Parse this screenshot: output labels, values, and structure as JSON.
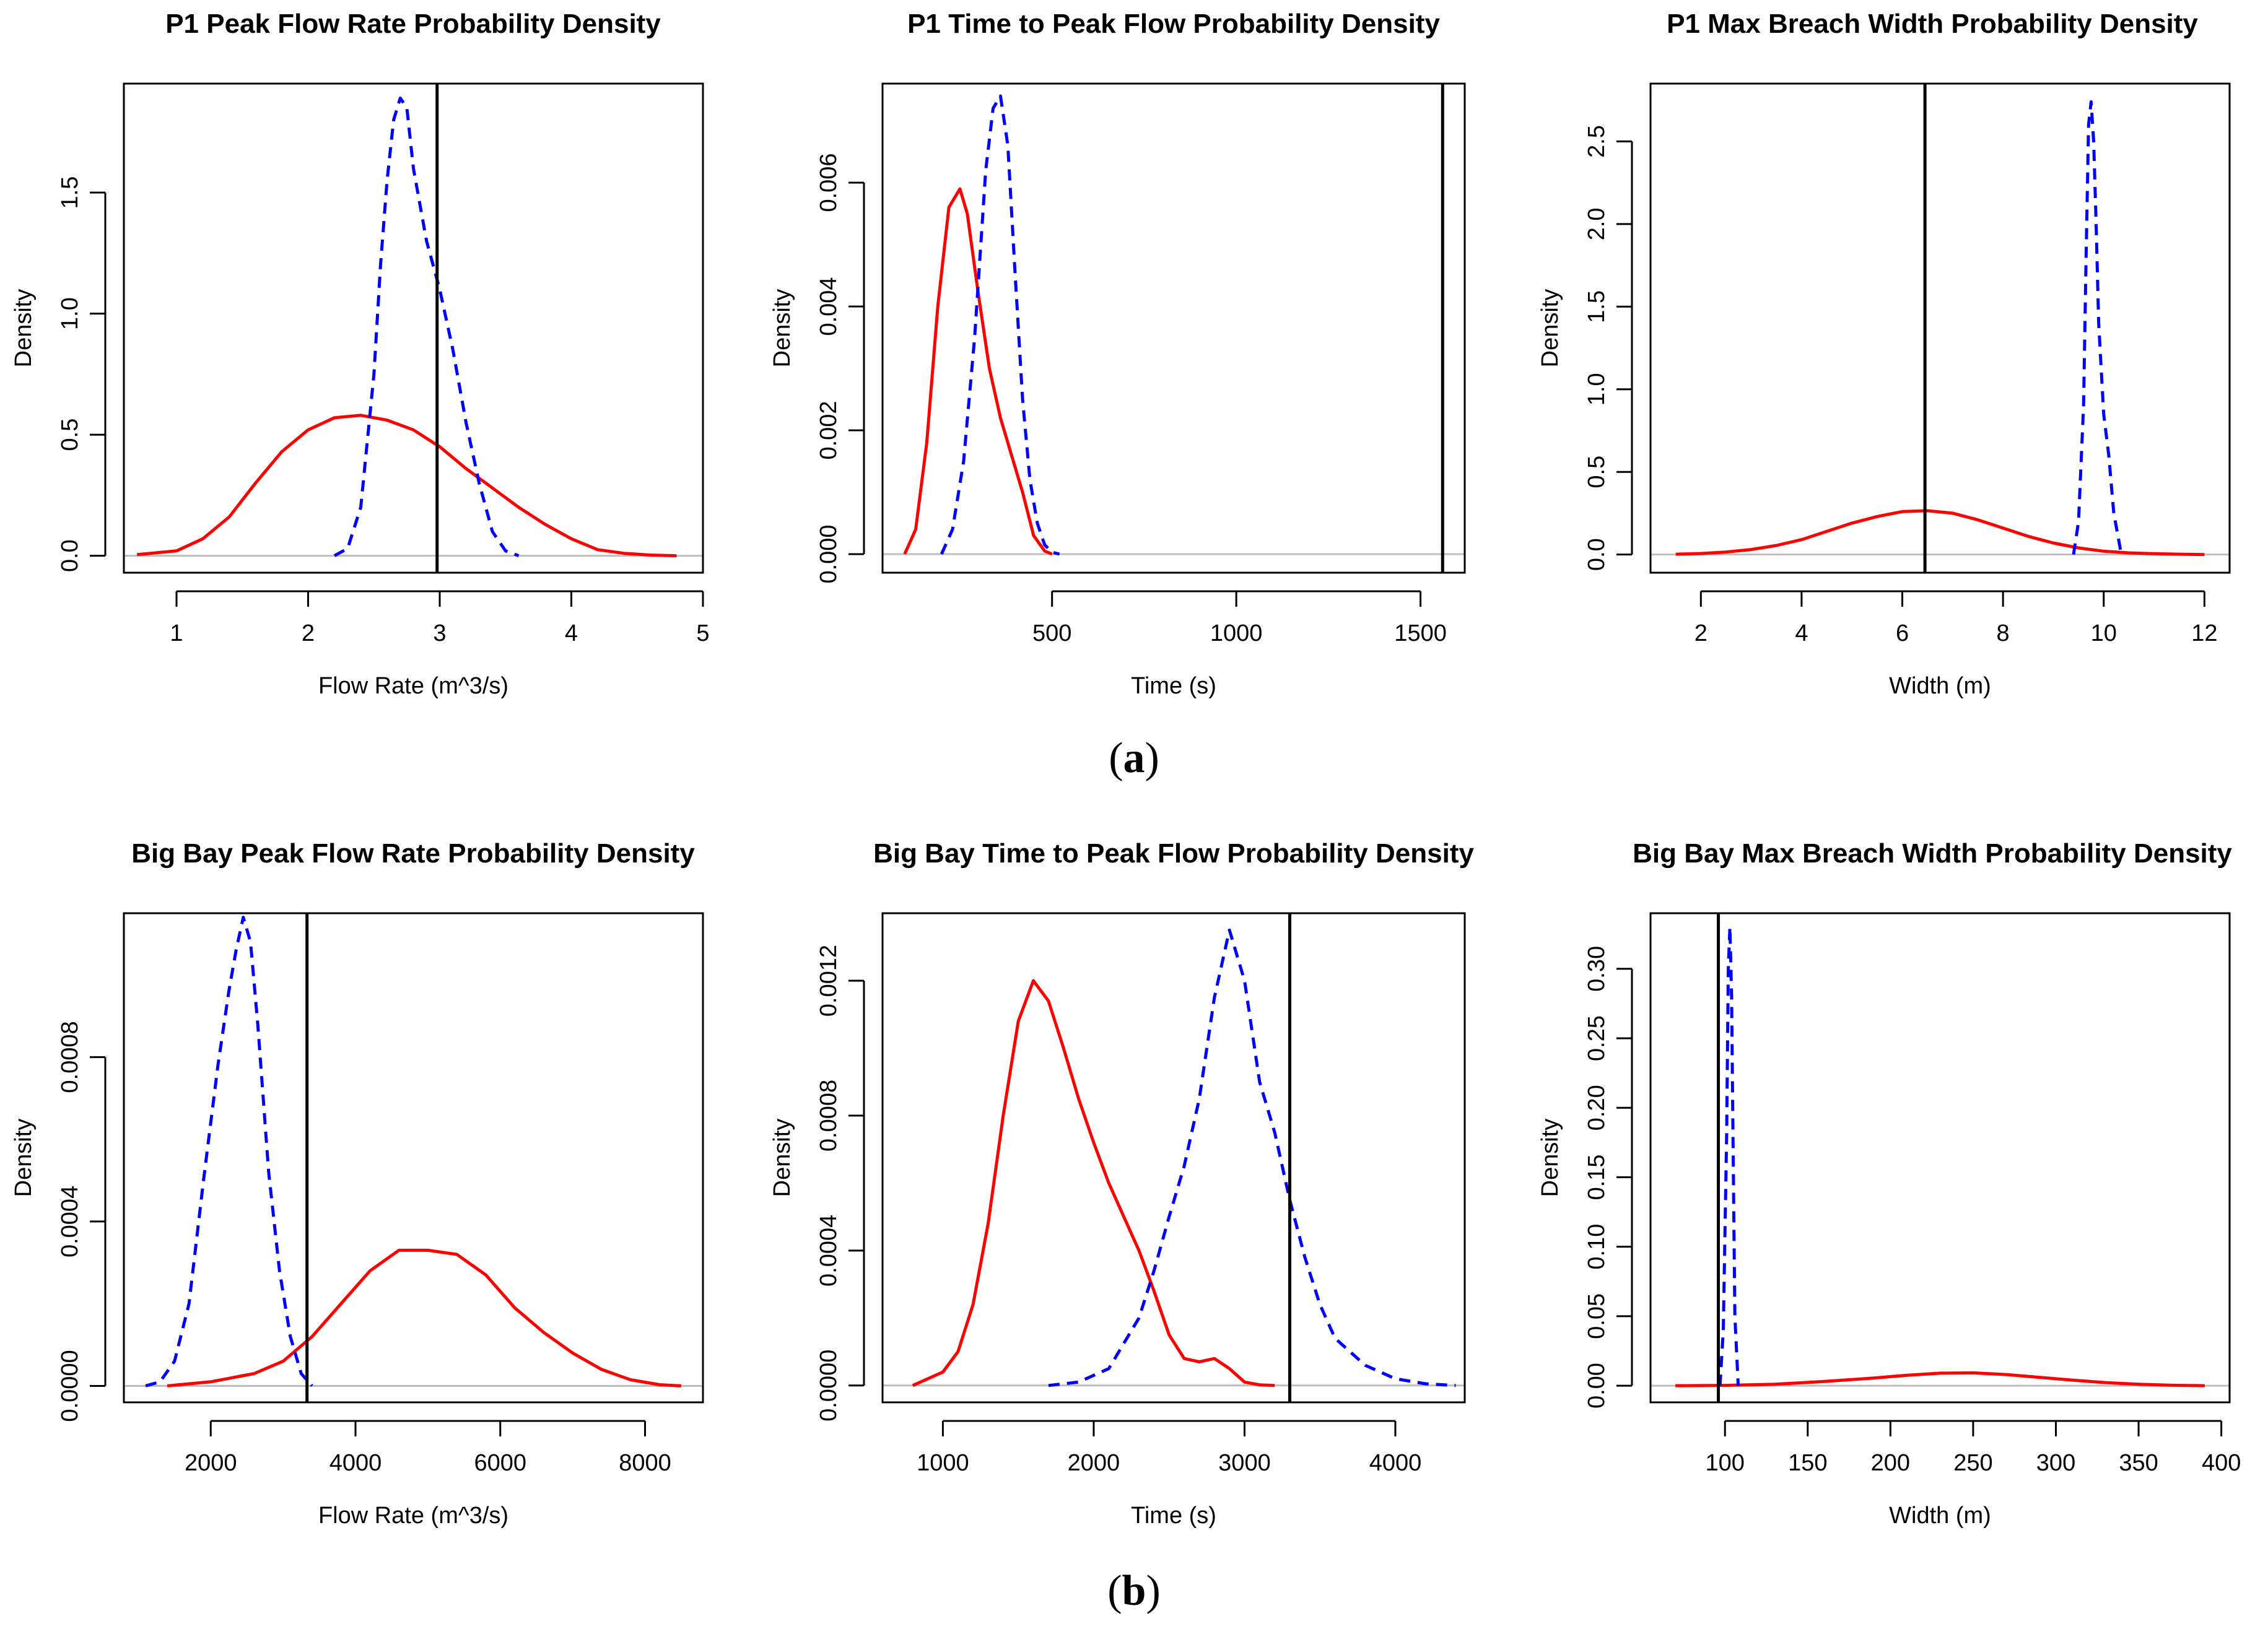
{
  "figure": {
    "caption_a": {
      "open": "(",
      "letter": "a",
      "close": ")"
    },
    "caption_b": {
      "open": "(",
      "letter": "b",
      "close": ")"
    }
  },
  "style": {
    "red_line_color": "#ff0000",
    "blue_line_color": "#0000ff",
    "observed_line_color": "#000000",
    "baseline_color": "#bebebe"
  },
  "chart_data": [
    {
      "type": "line",
      "title": "P1 Peak Flow Rate Probability Density",
      "xlabel": "Flow Rate (m^3/s)",
      "ylabel": "Density",
      "xlim": [
        0.6,
        5.0
      ],
      "ylim": [
        -0.07,
        1.95
      ],
      "xticks": [
        1,
        2,
        3,
        4,
        5
      ],
      "xtick_labels": [
        "1",
        "2",
        "3",
        "4",
        "5"
      ],
      "yticks": [
        0.0,
        0.5,
        1.0,
        1.5
      ],
      "ytick_labels": [
        "0.0",
        "0.5",
        "1.0",
        "1.5"
      ],
      "observed": 2.98,
      "series": [
        {
          "name": "red",
          "style": "solid",
          "x": [
            0.7,
            1.0,
            1.2,
            1.4,
            1.6,
            1.8,
            2.0,
            2.2,
            2.4,
            2.6,
            2.8,
            3.0,
            3.2,
            3.4,
            3.6,
            3.8,
            4.0,
            4.2,
            4.4,
            4.6,
            4.8
          ],
          "y": [
            0.005,
            0.02,
            0.07,
            0.16,
            0.3,
            0.43,
            0.52,
            0.57,
            0.58,
            0.56,
            0.52,
            0.45,
            0.36,
            0.28,
            0.2,
            0.13,
            0.07,
            0.025,
            0.01,
            0.003,
            0.0
          ]
        },
        {
          "name": "blue",
          "style": "dashed",
          "x": [
            2.2,
            2.3,
            2.4,
            2.5,
            2.55,
            2.6,
            2.65,
            2.7,
            2.75,
            2.8,
            2.9,
            3.0,
            3.1,
            3.2,
            3.3,
            3.4,
            3.5,
            3.6
          ],
          "y": [
            0.0,
            0.03,
            0.2,
            0.75,
            1.2,
            1.55,
            1.8,
            1.89,
            1.85,
            1.6,
            1.3,
            1.1,
            0.85,
            0.55,
            0.3,
            0.1,
            0.02,
            0.0
          ]
        }
      ]
    },
    {
      "type": "line",
      "title": "P1 Time to Peak Flow Probability Density",
      "xlabel": "Time (s)",
      "ylabel": "Density",
      "xlim": [
        40,
        1620
      ],
      "ylim": [
        -0.0003,
        0.0076
      ],
      "xticks": [
        500,
        1000,
        1500
      ],
      "xtick_labels": [
        "500",
        "1000",
        "1500"
      ],
      "yticks": [
        0.0,
        0.002,
        0.004,
        0.006
      ],
      "ytick_labels": [
        "0.000",
        "0.002",
        "0.004",
        "0.006"
      ],
      "observed": 1560,
      "series": [
        {
          "name": "red",
          "style": "solid",
          "x": [
            100,
            130,
            160,
            190,
            220,
            250,
            270,
            300,
            330,
            360,
            390,
            420,
            450,
            480,
            500
          ],
          "y": [
            0.0,
            0.0004,
            0.0018,
            0.004,
            0.0056,
            0.0059,
            0.0055,
            0.0042,
            0.003,
            0.0022,
            0.0016,
            0.001,
            0.0003,
            5e-05,
            0.0
          ]
        },
        {
          "name": "blue",
          "style": "dashed",
          "x": [
            200,
            230,
            260,
            290,
            320,
            340,
            360,
            380,
            400,
            420,
            440,
            460,
            480,
            500,
            520
          ],
          "y": [
            0.0,
            0.0004,
            0.0015,
            0.0035,
            0.0062,
            0.0072,
            0.0074,
            0.0066,
            0.0045,
            0.0025,
            0.0012,
            0.0005,
            0.00015,
            3e-05,
            0.0
          ]
        }
      ]
    },
    {
      "type": "line",
      "title": "P1 Max Breach Width Probability Density",
      "xlabel": "Width (m)",
      "ylabel": "Density",
      "xlim": [
        1.0,
        12.5
      ],
      "ylim": [
        -0.11,
        2.85
      ],
      "xticks": [
        2,
        4,
        6,
        8,
        10,
        12
      ],
      "xtick_labels": [
        "2",
        "4",
        "6",
        "8",
        "10",
        "12"
      ],
      "yticks": [
        0.0,
        0.5,
        1.0,
        1.5,
        2.0,
        2.5
      ],
      "ytick_labels": [
        "0.0",
        "0.5",
        "1.0",
        "1.5",
        "2.0",
        "2.5"
      ],
      "observed": 6.45,
      "series": [
        {
          "name": "red",
          "style": "solid",
          "x": [
            1.5,
            2.0,
            2.5,
            3.0,
            3.5,
            4.0,
            4.5,
            5.0,
            5.5,
            6.0,
            6.5,
            7.0,
            7.5,
            8.0,
            8.5,
            9.0,
            9.5,
            10.0,
            10.5,
            11.0,
            11.5,
            12.0
          ],
          "y": [
            0.002,
            0.006,
            0.015,
            0.03,
            0.055,
            0.09,
            0.14,
            0.19,
            0.23,
            0.26,
            0.265,
            0.25,
            0.21,
            0.16,
            0.11,
            0.07,
            0.04,
            0.02,
            0.01,
            0.005,
            0.002,
            0.0
          ]
        },
        {
          "name": "blue",
          "style": "dashed",
          "x": [
            9.4,
            9.5,
            9.6,
            9.65,
            9.7,
            9.75,
            9.8,
            9.85,
            9.9,
            10.0,
            10.1,
            10.2,
            10.35
          ],
          "y": [
            0.0,
            0.2,
            0.9,
            1.8,
            2.6,
            2.74,
            2.5,
            2.0,
            1.4,
            0.85,
            0.6,
            0.25,
            0.0
          ]
        }
      ]
    },
    {
      "type": "line",
      "title": "Big Bay Peak Flow Rate Probability Density",
      "xlabel": "Flow Rate (m^3/s)",
      "ylabel": "Density",
      "xlim": [
        800,
        8800
      ],
      "ylim": [
        -4e-05,
        0.00115
      ],
      "xticks": [
        2000,
        4000,
        6000,
        8000
      ],
      "xtick_labels": [
        "2000",
        "4000",
        "6000",
        "8000"
      ],
      "yticks": [
        0.0,
        0.0004,
        0.0008
      ],
      "ytick_labels": [
        "0.0000",
        "0.0004",
        "0.0008"
      ],
      "observed": 3330,
      "series": [
        {
          "name": "red",
          "style": "solid",
          "x": [
            1400,
            2000,
            2600,
            3000,
            3400,
            3800,
            4200,
            4600,
            5000,
            5400,
            5800,
            6200,
            6600,
            7000,
            7400,
            7800,
            8200,
            8500
          ],
          "y": [
            0.0,
            1e-05,
            3e-05,
            6e-05,
            0.00012,
            0.0002,
            0.00028,
            0.00033,
            0.00033,
            0.00032,
            0.00027,
            0.00019,
            0.00013,
            8e-05,
            4e-05,
            1.5e-05,
            3e-06,
            0.0
          ]
        },
        {
          "name": "blue",
          "style": "dashed",
          "x": [
            1100,
            1300,
            1500,
            1700,
            1900,
            2100,
            2250,
            2350,
            2450,
            2550,
            2650,
            2800,
            2950,
            3100,
            3250,
            3400
          ],
          "y": [
            0.0,
            1e-05,
            6e-05,
            0.0002,
            0.0005,
            0.00078,
            0.00096,
            0.00106,
            0.00114,
            0.00108,
            0.00088,
            0.00052,
            0.00028,
            0.00012,
            3e-05,
            0.0
          ]
        }
      ]
    },
    {
      "type": "line",
      "title": "Big Bay Time to Peak Flow Probability Density",
      "xlabel": "Time (s)",
      "ylabel": "Density",
      "xlim": [
        600,
        4460
      ],
      "ylim": [
        -5e-05,
        0.0014
      ],
      "xticks": [
        1000,
        2000,
        3000,
        4000
      ],
      "xtick_labels": [
        "1000",
        "2000",
        "3000",
        "4000"
      ],
      "yticks": [
        0.0,
        0.0004,
        0.0008,
        0.0012
      ],
      "ytick_labels": [
        "0.0000",
        "0.0004",
        "0.0008",
        "0.0012"
      ],
      "observed": 3300,
      "series": [
        {
          "name": "red",
          "style": "solid",
          "x": [
            800,
            1000,
            1100,
            1200,
            1300,
            1400,
            1500,
            1600,
            1700,
            1800,
            1900,
            2000,
            2100,
            2200,
            2300,
            2400,
            2500,
            2600,
            2700,
            2800,
            2900,
            3000,
            3100,
            3200
          ],
          "y": [
            0.0,
            4e-05,
            0.0001,
            0.00024,
            0.00048,
            0.0008,
            0.00108,
            0.0012,
            0.00114,
            0.001,
            0.00085,
            0.00072,
            0.0006,
            0.0005,
            0.0004,
            0.00028,
            0.00015,
            8e-05,
            7e-05,
            8e-05,
            5e-05,
            1e-05,
            2e-06,
            0.0
          ]
        },
        {
          "name": "blue",
          "style": "dashed",
          "x": [
            1700,
            1900,
            2100,
            2300,
            2400,
            2500,
            2600,
            2700,
            2800,
            2900,
            3000,
            3100,
            3200,
            3300,
            3400,
            3500,
            3600,
            3800,
            4000,
            4200,
            4400
          ],
          "y": [
            0.0,
            1e-05,
            5e-05,
            0.0002,
            0.00034,
            0.0005,
            0.00065,
            0.00085,
            0.00115,
            0.00135,
            0.0012,
            0.0009,
            0.00075,
            0.00055,
            0.00038,
            0.00024,
            0.00014,
            6e-05,
            2e-05,
            5e-06,
            0.0
          ]
        }
      ]
    },
    {
      "type": "line",
      "title": "Big Bay Max Breach Width Probability Density",
      "xlabel": "Width (m)",
      "ylabel": "Density",
      "xlim": [
        55,
        405
      ],
      "ylim": [
        -0.012,
        0.34
      ],
      "xticks": [
        100,
        150,
        200,
        250,
        300,
        350,
        400
      ],
      "xtick_labels": [
        "100",
        "150",
        "200",
        "250",
        "300",
        "350",
        "400"
      ],
      "yticks": [
        0.0,
        0.05,
        0.1,
        0.15,
        0.2,
        0.25,
        0.3
      ],
      "ytick_labels": [
        "0.00",
        "0.05",
        "0.10",
        "0.15",
        "0.20",
        "0.25",
        "0.30"
      ],
      "observed": 96,
      "series": [
        {
          "name": "red",
          "style": "solid",
          "x": [
            70,
            100,
            130,
            160,
            190,
            210,
            230,
            250,
            270,
            290,
            310,
            330,
            350,
            370,
            390
          ],
          "y": [
            0.0,
            0.0002,
            0.001,
            0.003,
            0.0055,
            0.0075,
            0.009,
            0.0092,
            0.008,
            0.006,
            0.004,
            0.0022,
            0.001,
            0.0003,
            0.0
          ]
        },
        {
          "name": "blue",
          "style": "dashed",
          "x": [
            97,
            99,
            101,
            102,
            103,
            104,
            105,
            106,
            108
          ],
          "y": [
            0.0,
            0.04,
            0.18,
            0.3,
            0.33,
            0.28,
            0.16,
            0.05,
            0.0
          ]
        }
      ]
    }
  ]
}
